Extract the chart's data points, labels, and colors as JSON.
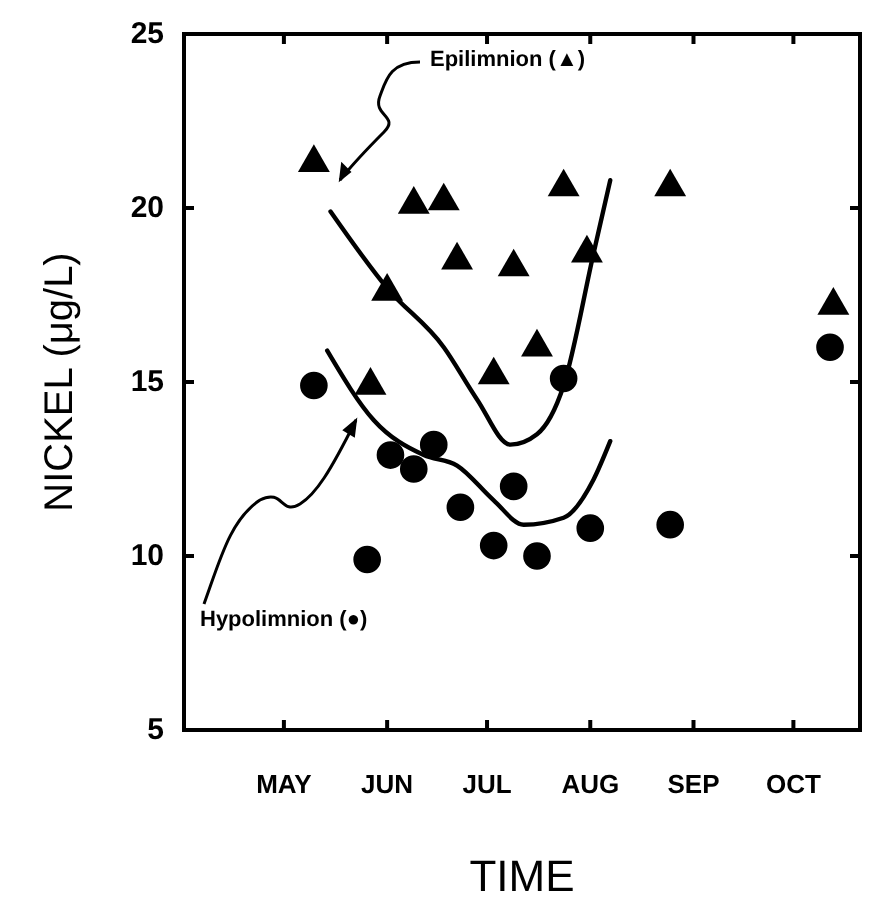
{
  "chart_data": {
    "type": "scatter",
    "xlabel": "TIME",
    "ylabel": "NICKEL (μg/L)",
    "xlim": [
      "--04-01",
      "--10-21"
    ],
    "xticks": [
      {
        "value": "--05-01",
        "label": "MAY"
      },
      {
        "value": "--06-01",
        "label": "JUN"
      },
      {
        "value": "--07-01",
        "label": "JUL"
      },
      {
        "value": "--08-01",
        "label": "AUG"
      },
      {
        "value": "--09-01",
        "label": "SEP"
      },
      {
        "value": "--10-01",
        "label": "OCT"
      }
    ],
    "ylim": [
      5,
      25
    ],
    "yticks": [
      5,
      10,
      15,
      20,
      25
    ],
    "series": [
      {
        "name": "Epilimnion (▲)",
        "color": "#000000",
        "marker": "triangle",
        "x": [
          "--05-10",
          "--05-27",
          "--06-01",
          "--06-09",
          "--06-18",
          "--06-22",
          "--07-03",
          "--07-09",
          "--07-16",
          "--07-24",
          "--07-31",
          "--08-25",
          "--10-13"
        ],
        "values": [
          21.3,
          14.9,
          17.6,
          20.1,
          20.2,
          18.5,
          15.2,
          18.3,
          16.0,
          20.6,
          18.7,
          20.6,
          17.2
        ]
      },
      {
        "name": "Hypolimnion (●)",
        "color": "#000000",
        "marker": "circle",
        "x": [
          "--05-10",
          "--05-26",
          "--06-02",
          "--06-09",
          "--06-15",
          "--06-23",
          "--07-03",
          "--07-09",
          "--07-16",
          "--07-24",
          "--08-01",
          "--08-25",
          "--10-12"
        ],
        "values": [
          14.9,
          9.9,
          12.9,
          12.5,
          13.2,
          11.4,
          10.3,
          12.0,
          10.0,
          15.1,
          10.8,
          10.9,
          16.0
        ]
      },
      {
        "type": "line",
        "color": "#000000",
        "marker": "none",
        "x": [
          "--05-15",
          "--06-01",
          "--06-18",
          "--06-28",
          "--07-08",
          "--07-16",
          "--07-24",
          "--08-02",
          "--08-07"
        ],
        "values": [
          19.9,
          17.7,
          16.0,
          14.5,
          13.2,
          13.5,
          14.9,
          18.7,
          20.8
        ]
      },
      {
        "type": "line",
        "color": "#000000",
        "marker": "none",
        "x": [
          "--05-14",
          "--05-28",
          "--06-12",
          "--06-22",
          "--07-03",
          "--07-12",
          "--07-24",
          "--08-02",
          "--08-07"
        ],
        "values": [
          15.9,
          13.9,
          12.9,
          12.6,
          11.6,
          10.9,
          11.1,
          12.2,
          13.3
        ]
      }
    ]
  }
}
